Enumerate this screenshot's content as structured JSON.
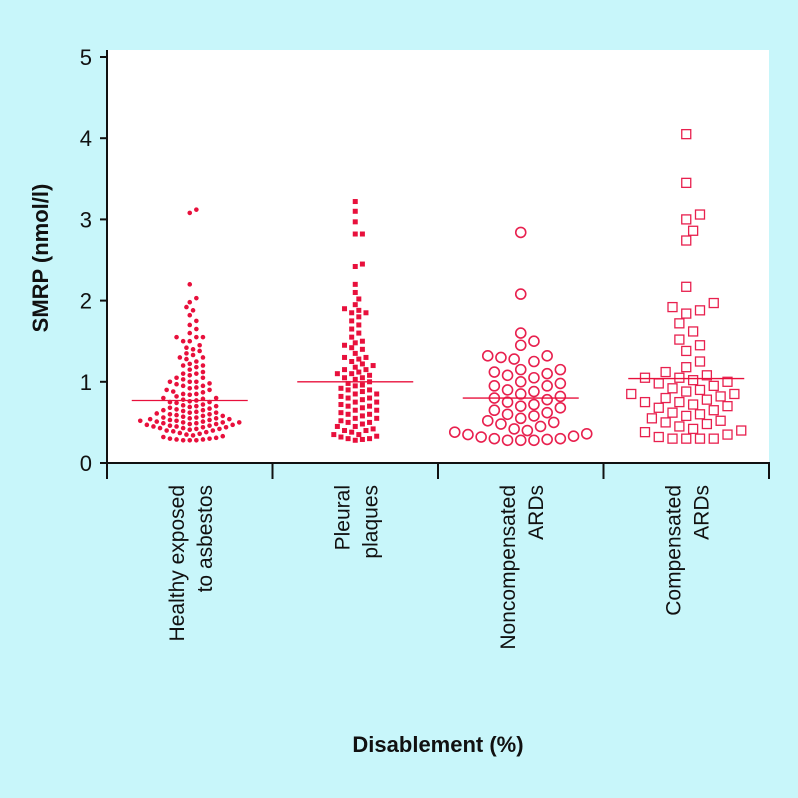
{
  "chart_data": {
    "type": "scatter",
    "subtype": "dot-plot with median lines",
    "xlabel": "Disablement (%)",
    "ylabel": "SMRP (nmol/l)",
    "ylim": [
      0,
      5
    ],
    "yticks": [
      "0",
      "1",
      "2",
      "3",
      "4",
      "5"
    ],
    "grid": false,
    "color": "#e8103c",
    "groups": [
      {
        "name": "Healthy exposed to asbestos",
        "label_lines": [
          "Healthy exposed",
          "to asbestos"
        ],
        "marker": "filled-circle",
        "median": 0.77,
        "values": [
          3.12,
          3.08,
          2.2,
          2.03,
          1.98,
          1.92,
          1.88,
          1.82,
          1.75,
          1.7,
          1.65,
          1.6,
          1.55,
          1.55,
          1.55,
          1.5,
          1.5,
          1.45,
          1.42,
          1.4,
          1.38,
          1.35,
          1.33,
          1.3,
          1.3,
          1.28,
          1.25,
          1.22,
          1.2,
          1.2,
          1.18,
          1.15,
          1.12,
          1.1,
          1.1,
          1.08,
          1.05,
          1.05,
          1.03,
          1.0,
          1.0,
          1.0,
          0.98,
          0.97,
          0.95,
          0.95,
          0.93,
          0.92,
          0.9,
          0.9,
          0.88,
          0.87,
          0.85,
          0.85,
          0.84,
          0.82,
          0.8,
          0.8,
          0.79,
          0.78,
          0.77,
          0.76,
          0.75,
          0.75,
          0.74,
          0.72,
          0.71,
          0.7,
          0.7,
          0.69,
          0.68,
          0.67,
          0.66,
          0.65,
          0.65,
          0.64,
          0.63,
          0.62,
          0.62,
          0.61,
          0.6,
          0.6,
          0.59,
          0.58,
          0.58,
          0.57,
          0.56,
          0.56,
          0.55,
          0.55,
          0.54,
          0.54,
          0.53,
          0.53,
          0.52,
          0.52,
          0.51,
          0.51,
          0.5,
          0.5,
          0.5,
          0.49,
          0.49,
          0.48,
          0.48,
          0.47,
          0.47,
          0.46,
          0.46,
          0.45,
          0.45,
          0.44,
          0.44,
          0.43,
          0.43,
          0.42,
          0.42,
          0.41,
          0.4,
          0.4,
          0.39,
          0.38,
          0.37,
          0.36,
          0.35,
          0.34,
          0.33,
          0.32,
          0.31,
          0.3,
          0.3,
          0.29,
          0.29,
          0.28,
          0.28,
          0.28
        ]
      },
      {
        "name": "Pleural plaques",
        "label_lines": [
          "Pleural",
          "plaques"
        ],
        "marker": "filled-square",
        "median": 1.0,
        "values": [
          3.22,
          3.1,
          2.97,
          2.82,
          2.82,
          2.45,
          2.42,
          2.2,
          2.1,
          2.02,
          1.95,
          1.9,
          1.88,
          1.85,
          1.85,
          1.8,
          1.75,
          1.7,
          1.65,
          1.6,
          1.55,
          1.5,
          1.48,
          1.45,
          1.42,
          1.4,
          1.35,
          1.3,
          1.3,
          1.28,
          1.25,
          1.22,
          1.2,
          1.18,
          1.15,
          1.15,
          1.12,
          1.1,
          1.1,
          1.08,
          1.05,
          1.05,
          1.03,
          1.0,
          0.98,
          0.96,
          0.95,
          0.92,
          0.9,
          0.9,
          0.88,
          0.85,
          0.85,
          0.82,
          0.8,
          0.8,
          0.78,
          0.75,
          0.75,
          0.72,
          0.7,
          0.7,
          0.68,
          0.65,
          0.65,
          0.62,
          0.6,
          0.6,
          0.58,
          0.55,
          0.55,
          0.52,
          0.5,
          0.5,
          0.48,
          0.45,
          0.45,
          0.42,
          0.4,
          0.4,
          0.38,
          0.35,
          0.35,
          0.33,
          0.32,
          0.3,
          0.3,
          0.29,
          0.28
        ]
      },
      {
        "name": "Noncompensated ARDs",
        "label_lines": [
          "Noncompensated",
          "ARDs"
        ],
        "marker": "open-circle",
        "median": 0.8,
        "values": [
          2.84,
          2.08,
          1.6,
          1.5,
          1.45,
          1.32,
          1.32,
          1.3,
          1.28,
          1.25,
          1.15,
          1.15,
          1.12,
          1.1,
          1.08,
          1.05,
          1.0,
          0.98,
          0.95,
          0.95,
          0.9,
          0.88,
          0.85,
          0.82,
          0.8,
          0.78,
          0.75,
          0.72,
          0.7,
          0.68,
          0.65,
          0.62,
          0.6,
          0.58,
          0.55,
          0.52,
          0.5,
          0.48,
          0.45,
          0.42,
          0.4,
          0.38,
          0.36,
          0.35,
          0.33,
          0.32,
          0.3,
          0.3,
          0.29,
          0.28,
          0.28,
          0.28
        ]
      },
      {
        "name": "Compensated ARDs",
        "label_lines": [
          "Compensated",
          "ARDs"
        ],
        "marker": "open-square",
        "median": 1.04,
        "values": [
          4.05,
          3.45,
          3.06,
          3.0,
          2.86,
          2.74,
          2.17,
          1.97,
          1.92,
          1.88,
          1.84,
          1.72,
          1.62,
          1.52,
          1.45,
          1.38,
          1.25,
          1.18,
          1.12,
          1.08,
          1.05,
          1.05,
          1.02,
          1.0,
          0.98,
          0.95,
          0.92,
          0.9,
          0.88,
          0.85,
          0.85,
          0.82,
          0.8,
          0.78,
          0.75,
          0.75,
          0.72,
          0.7,
          0.68,
          0.65,
          0.62,
          0.6,
          0.58,
          0.55,
          0.52,
          0.5,
          0.48,
          0.45,
          0.42,
          0.4,
          0.38,
          0.35,
          0.32,
          0.3,
          0.3,
          0.3,
          0.3
        ]
      }
    ]
  }
}
